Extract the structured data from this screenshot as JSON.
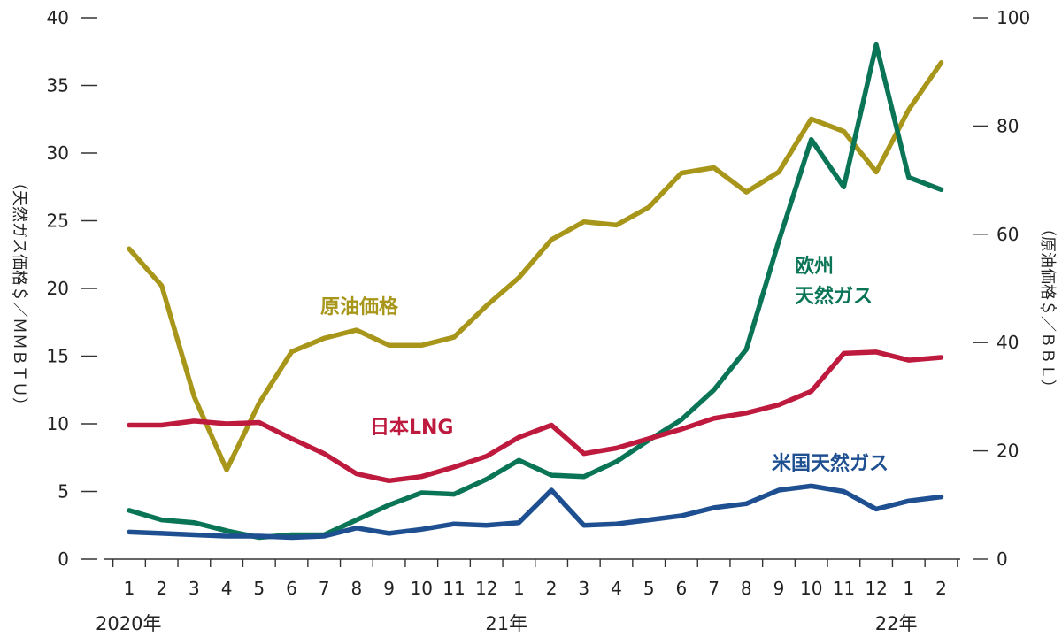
{
  "chart_data": {
    "type": "line",
    "categories": [
      "1",
      "2",
      "3",
      "4",
      "5",
      "6",
      "7",
      "8",
      "9",
      "10",
      "11",
      "12",
      "1",
      "2",
      "3",
      "4",
      "5",
      "6",
      "7",
      "8",
      "9",
      "10",
      "11",
      "12",
      "1",
      "2"
    ],
    "year_labels": [
      {
        "index": 0,
        "label": "2020年"
      },
      {
        "index": 12,
        "label": "21年"
      },
      {
        "index": 24,
        "label": "22年"
      }
    ],
    "y_left": {
      "label": "（天然ガス価格＄／ＭＭＢＴＵ）",
      "range": [
        0,
        40
      ],
      "ticks": [
        0,
        5,
        10,
        15,
        20,
        25,
        30,
        35,
        40
      ]
    },
    "y_right": {
      "label": "（原油価格＄／ＢＢＬ）",
      "range": [
        0,
        100
      ],
      "ticks": [
        0,
        20,
        40,
        60,
        80,
        100
      ]
    },
    "series": [
      {
        "name": "原油価格",
        "axis": "right",
        "color": "#a8961a",
        "values": [
          57.3,
          50.5,
          30,
          16.5,
          28.8,
          38.3,
          40.8,
          42.3,
          39.5,
          39.5,
          41,
          46.8,
          52,
          59,
          62.3,
          61.7,
          65,
          71.3,
          72.3,
          67.8,
          71.5,
          81.3,
          79,
          71.5,
          83,
          91.7
        ]
      },
      {
        "name": "欧州天然ガス",
        "axis": "left",
        "color": "#0a7456",
        "values": [
          3.6,
          2.9,
          2.7,
          2.1,
          1.6,
          1.8,
          1.8,
          2.9,
          4,
          4.9,
          4.8,
          5.9,
          7.3,
          6.2,
          6.1,
          7.2,
          8.8,
          10.3,
          12.5,
          15.5,
          23.5,
          31,
          27.5,
          38,
          28.2,
          27.3
        ]
      },
      {
        "name": "日本LNG",
        "axis": "left",
        "color": "#be1a3e",
        "values": [
          9.9,
          9.9,
          10.2,
          10,
          10.1,
          8.9,
          7.8,
          6.3,
          5.8,
          6.1,
          6.8,
          7.6,
          9,
          9.9,
          7.8,
          8.2,
          8.9,
          9.6,
          10.4,
          10.8,
          11.4,
          12.4,
          15.2,
          15.3,
          14.7,
          14.9
        ]
      },
      {
        "name": "米国天然ガス",
        "axis": "left",
        "color": "#1e4f91",
        "values": [
          2,
          1.9,
          1.8,
          1.7,
          1.7,
          1.6,
          1.7,
          2.3,
          1.9,
          2.2,
          2.6,
          2.5,
          2.7,
          5.1,
          2.5,
          2.6,
          2.9,
          3.2,
          3.8,
          4.1,
          5.1,
          5.4,
          5,
          3.7,
          4.3,
          4.6
        ]
      }
    ],
    "annotations": [
      {
        "series": "原油価格",
        "lines": [
          "原油価格"
        ]
      },
      {
        "series": "欧州天然ガス",
        "lines": [
          "欧州",
          "天然ガス"
        ]
      },
      {
        "series": "日本LNG",
        "lines": [
          "日本LNG"
        ]
      },
      {
        "series": "米国天然ガス",
        "lines": [
          "米国天然ガス"
        ]
      }
    ]
  }
}
